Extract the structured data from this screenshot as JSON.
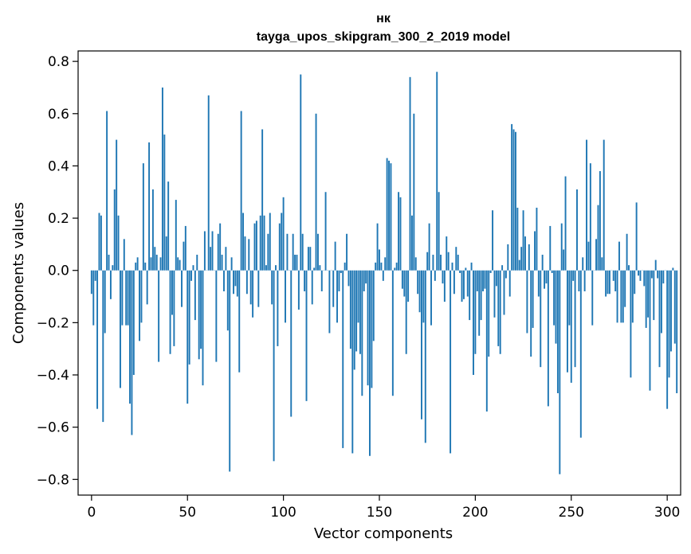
{
  "chart_data": {
    "type": "bar",
    "title": "нк",
    "subtitle": "tayga_upos_skipgram_300_2_2019 model",
    "xlabel": "Vector components",
    "ylabel": "Components values",
    "xlim": [
      -7,
      307
    ],
    "ylim": [
      -0.86,
      0.84
    ],
    "xticks": [
      0,
      50,
      100,
      150,
      200,
      250,
      300
    ],
    "xtick_labels": [
      "0",
      "50",
      "100",
      "150",
      "200",
      "250",
      "300"
    ],
    "yticks": [
      -0.8,
      -0.6,
      -0.4,
      -0.2,
      0.0,
      0.2,
      0.4,
      0.6,
      0.8
    ],
    "ytick_labels": [
      "−0.8",
      "−0.6",
      "−0.4",
      "−0.2",
      "0.0",
      "0.2",
      "0.4",
      "0.6",
      "0.8"
    ],
    "grid": false,
    "bar_color": "#1f77b4",
    "values": [
      -0.09,
      -0.21,
      -0.04,
      -0.53,
      0.22,
      0.21,
      -0.58,
      -0.24,
      0.61,
      0.06,
      -0.11,
      0.02,
      0.31,
      0.5,
      0.21,
      -0.45,
      -0.21,
      0.12,
      -0.21,
      -0.21,
      -0.51,
      -0.63,
      -0.4,
      0.03,
      0.05,
      -0.27,
      -0.2,
      0.41,
      0.03,
      -0.13,
      0.49,
      0.05,
      0.31,
      0.09,
      0.06,
      -0.35,
      0.05,
      0.7,
      0.52,
      0.13,
      0.34,
      -0.32,
      -0.17,
      -0.29,
      0.27,
      0.05,
      0.04,
      -0.14,
      0.11,
      0.17,
      -0.51,
      -0.36,
      -0.04,
      0.02,
      -0.19,
      0.06,
      -0.34,
      -0.3,
      -0.44,
      0.15,
      0.0,
      0.67,
      0.09,
      0.15,
      0.0,
      -0.35,
      0.14,
      0.18,
      0.06,
      -0.08,
      0.09,
      -0.23,
      -0.77,
      0.05,
      -0.09,
      -0.06,
      -0.1,
      -0.39,
      0.61,
      0.22,
      0.13,
      -0.09,
      0.12,
      -0.13,
      -0.18,
      0.18,
      0.19,
      -0.14,
      0.21,
      0.54,
      0.21,
      0.02,
      0.14,
      0.22,
      -0.13,
      -0.73,
      0.02,
      -0.29,
      0.18,
      0.22,
      0.28,
      -0.2,
      0.14,
      0.0,
      -0.56,
      0.14,
      0.06,
      0.06,
      -0.15,
      0.75,
      0.14,
      -0.08,
      -0.5,
      0.09,
      0.09,
      -0.13,
      0.01,
      0.6,
      0.14,
      0.02,
      -0.08,
      0.0,
      0.3,
      0.0,
      -0.24,
      0.0,
      -0.14,
      0.11,
      -0.2,
      -0.08,
      -0.01,
      -0.68,
      0.03,
      0.14,
      -0.06,
      -0.3,
      -0.7,
      -0.38,
      -0.31,
      -0.2,
      -0.32,
      -0.48,
      -0.08,
      -0.05,
      -0.44,
      -0.71,
      -0.45,
      -0.27,
      0.03,
      0.18,
      0.08,
      0.03,
      -0.04,
      0.05,
      0.43,
      0.42,
      0.41,
      -0.48,
      0.01,
      0.03,
      0.3,
      0.28,
      -0.07,
      -0.1,
      -0.32,
      -0.12,
      0.74,
      0.21,
      0.6,
      0.05,
      -0.09,
      -0.16,
      -0.57,
      -0.2,
      -0.66,
      0.07,
      0.18,
      -0.21,
      0.06,
      -0.04,
      0.76,
      0.3,
      0.06,
      -0.05,
      -0.12,
      0.13,
      0.07,
      -0.7,
      0.03,
      -0.09,
      0.09,
      0.06,
      -0.01,
      -0.12,
      -0.11,
      0.01,
      -0.1,
      -0.19,
      0.03,
      -0.4,
      -0.32,
      -0.08,
      -0.25,
      -0.19,
      -0.08,
      -0.07,
      -0.54,
      -0.33,
      -0.01,
      0.23,
      -0.18,
      -0.06,
      -0.29,
      -0.32,
      0.02,
      -0.17,
      -0.03,
      0.1,
      -0.1,
      0.56,
      0.54,
      0.53,
      0.24,
      0.04,
      0.09,
      0.23,
      0.13,
      -0.24,
      0.1,
      -0.33,
      -0.22,
      0.15,
      0.24,
      -0.1,
      -0.37,
      0.06,
      -0.07,
      -0.05,
      -0.52,
      0.17,
      -0.01,
      -0.21,
      -0.28,
      -0.47,
      -0.78,
      0.18,
      0.08,
      0.36,
      -0.39,
      -0.21,
      -0.43,
      -0.04,
      -0.37,
      0.31,
      -0.08,
      -0.64,
      0.05,
      -0.08,
      0.5,
      0.11,
      0.41,
      -0.21,
      0.0,
      0.12,
      0.25,
      0.38,
      0.05,
      0.5,
      -0.1,
      -0.09,
      -0.09,
      0.0,
      -0.04,
      -0.08,
      -0.2,
      0.11,
      -0.2,
      -0.2,
      -0.14,
      0.14,
      0.02,
      -0.41,
      -0.2,
      -0.09,
      0.26,
      -0.02,
      -0.04,
      0.0,
      -0.06,
      -0.22,
      -0.18,
      -0.46,
      -0.03,
      -0.19,
      0.04,
      -0.03,
      -0.37,
      -0.24,
      -0.05,
      0.0,
      -0.53,
      -0.41,
      -0.31,
      0.01,
      -0.28,
      -0.47
    ]
  }
}
